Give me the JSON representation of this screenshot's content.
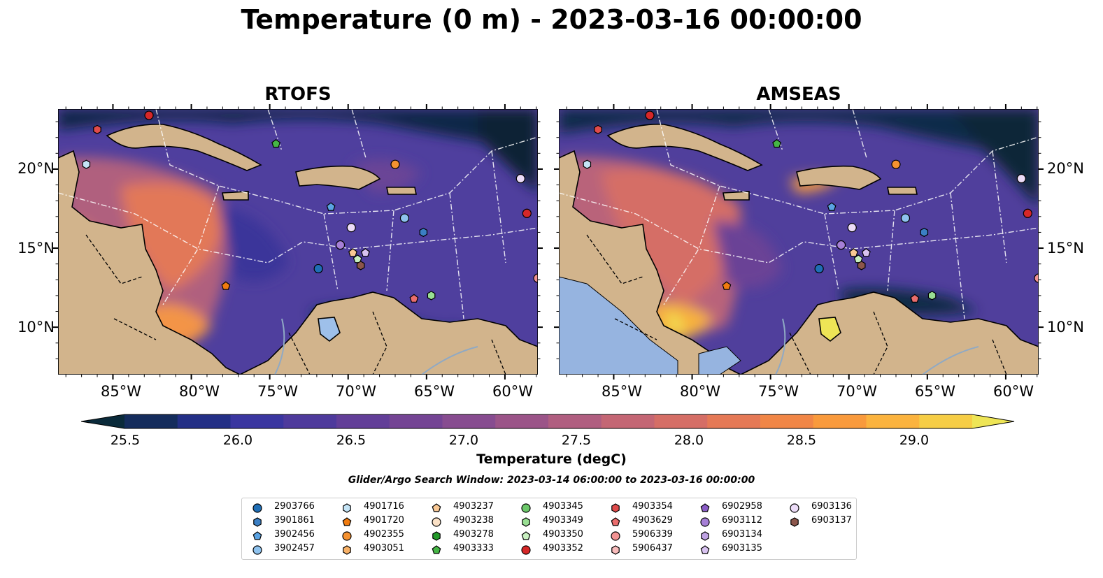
{
  "title": "Temperature (0 m) - 2023-03-16 00:00:00",
  "panels": [
    {
      "title": "RTOFS"
    },
    {
      "title": "AMSEAS"
    }
  ],
  "lat_labels": [
    "20°N",
    "15°N",
    "10°N"
  ],
  "lon_labels": [
    "85°W",
    "80°W",
    "75°W",
    "70°W",
    "65°W",
    "60°W"
  ],
  "colorbar": {
    "label": "Temperature (degC)",
    "ticks": [
      "25.5",
      "26.0",
      "26.5",
      "27.0",
      "27.5",
      "28.0",
      "28.5",
      "29.0"
    ],
    "colors": [
      "#0a2a3a",
      "#142c5c",
      "#232f86",
      "#3a36a0",
      "#4e3a9c",
      "#623e98",
      "#744494",
      "#874c90",
      "#9b5488",
      "#b05e80",
      "#c46674",
      "#d56e66",
      "#e57956",
      "#f18646",
      "#f99a3c",
      "#fbb33e",
      "#f6cd45",
      "#eee556"
    ]
  },
  "search_window": "Glider/Argo Search Window: 2023-03-14 06:00:00 to 2023-03-16 00:00:00",
  "legend": [
    {
      "id": "2903766",
      "color": "#1f6eb5",
      "shape": "circle"
    },
    {
      "id": "3901861",
      "color": "#3b7fc4",
      "shape": "hexagon"
    },
    {
      "id": "3902456",
      "color": "#5aa3e3",
      "shape": "pentagon"
    },
    {
      "id": "3902457",
      "color": "#8ec2ee",
      "shape": "circle"
    },
    {
      "id": "4901716",
      "color": "#c4e4f6",
      "shape": "hexagon"
    },
    {
      "id": "4901720",
      "color": "#f07b0f",
      "shape": "pentagon"
    },
    {
      "id": "4902355",
      "color": "#f59231",
      "shape": "circle"
    },
    {
      "id": "4903051",
      "color": "#f7b066",
      "shape": "hexagon"
    },
    {
      "id": "4903237",
      "color": "#f9c894",
      "shape": "pentagon"
    },
    {
      "id": "4903238",
      "color": "#fbe1c6",
      "shape": "circle"
    },
    {
      "id": "4903278",
      "color": "#249a2a",
      "shape": "hexagon"
    },
    {
      "id": "4903333",
      "color": "#46b646",
      "shape": "pentagon"
    },
    {
      "id": "4903345",
      "color": "#6cc86a",
      "shape": "circle"
    },
    {
      "id": "4903349",
      "color": "#99df93",
      "shape": "hexagon"
    },
    {
      "id": "4903350",
      "color": "#c8f0c0",
      "shape": "pentagon"
    },
    {
      "id": "4903352",
      "color": "#d62728",
      "shape": "circle"
    },
    {
      "id": "4903354",
      "color": "#df4b4b",
      "shape": "hexagon"
    },
    {
      "id": "4903629",
      "color": "#ea6d6d",
      "shape": "pentagon"
    },
    {
      "id": "5906339",
      "color": "#f29393",
      "shape": "circle"
    },
    {
      "id": "5906437",
      "color": "#f8bbbb",
      "shape": "hexagon"
    },
    {
      "id": "6902958",
      "color": "#8a5cc6",
      "shape": "pentagon"
    },
    {
      "id": "6903112",
      "color": "#a67fd6",
      "shape": "circle"
    },
    {
      "id": "6903134",
      "color": "#bfa2e3",
      "shape": "hexagon"
    },
    {
      "id": "6903135",
      "color": "#d8c2f0",
      "shape": "pentagon"
    },
    {
      "id": "6903136",
      "color": "#ecdcf8",
      "shape": "circle"
    },
    {
      "id": "6903137",
      "color": "#8c564b",
      "shape": "hexagon"
    }
  ],
  "markers": [
    {
      "id": "4903352",
      "lon": -82.7,
      "lat": 23.4
    },
    {
      "id": "4903354",
      "lon": -86.0,
      "lat": 22.5
    },
    {
      "id": "4901716",
      "lon": -86.7,
      "lat": 20.3
    },
    {
      "id": "4903333",
      "lon": -74.6,
      "lat": 21.6
    },
    {
      "id": "4902355",
      "lon": -67.0,
      "lat": 20.3
    },
    {
      "id": "6903136",
      "lon": -59.0,
      "lat": 19.4
    },
    {
      "id": "4903352",
      "lon": -58.6,
      "lat": 17.2
    },
    {
      "id": "3902457",
      "lon": -66.4,
      "lat": 16.9
    },
    {
      "id": "3902456",
      "lon": -71.1,
      "lat": 17.6
    },
    {
      "id": "6903136",
      "lon": -69.8,
      "lat": 16.3
    },
    {
      "id": "6903112",
      "lon": -70.5,
      "lat": 15.2
    },
    {
      "id": "3901861",
      "lon": -65.2,
      "lat": 16.0
    },
    {
      "id": "4903237",
      "lon": -69.7,
      "lat": 14.7
    },
    {
      "id": "6903135",
      "lon": -68.9,
      "lat": 14.7
    },
    {
      "id": "4903350",
      "lon": -69.4,
      "lat": 14.3
    },
    {
      "id": "6903137",
      "lon": -69.2,
      "lat": 13.9
    },
    {
      "id": "2903766",
      "lon": -71.9,
      "lat": 13.7
    },
    {
      "id": "4901720",
      "lon": -77.8,
      "lat": 12.6
    },
    {
      "id": "4903349",
      "lon": -64.7,
      "lat": 12.0
    },
    {
      "id": "4903629",
      "lon": -65.8,
      "lat": 11.8
    },
    {
      "id": "5906339",
      "lon": -57.9,
      "lat": 13.1
    }
  ]
}
